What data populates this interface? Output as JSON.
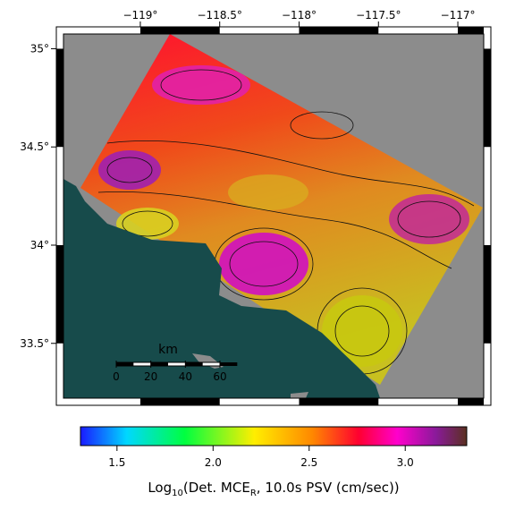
{
  "map": {
    "lon_range": [
      -119.484,
      -116.837
    ],
    "lat_range": [
      33.221,
      35.075
    ],
    "lon_ticks": [
      {
        "value": -119,
        "label": "−119°"
      },
      {
        "value": -118.5,
        "label": "−118.5°"
      },
      {
        "value": -118,
        "label": "−118°"
      },
      {
        "value": -117.5,
        "label": "−117.5°"
      },
      {
        "value": -117,
        "label": "−117°"
      }
    ],
    "lat_ticks": [
      {
        "value": 35,
        "label": "35°"
      },
      {
        "value": 34.5,
        "label": "34.5°"
      },
      {
        "value": 34,
        "label": "34°"
      },
      {
        "value": 33.5,
        "label": "33.5°"
      }
    ],
    "scale_bar": {
      "unit": "km",
      "ticks": [
        0,
        20,
        40,
        60
      ]
    }
  },
  "colorbar": {
    "range": [
      1.31,
      3.32
    ],
    "ticks": [
      1.5,
      {
        "value": 2.0,
        "label": "2.0"
      },
      2.5,
      {
        "value": 3.0,
        "label": "3.0"
      }
    ],
    "label_parts": [
      "Log",
      "10",
      "(Det. MCE",
      "R",
      ", 10.0s PSV (cm/sec))"
    ]
  }
}
